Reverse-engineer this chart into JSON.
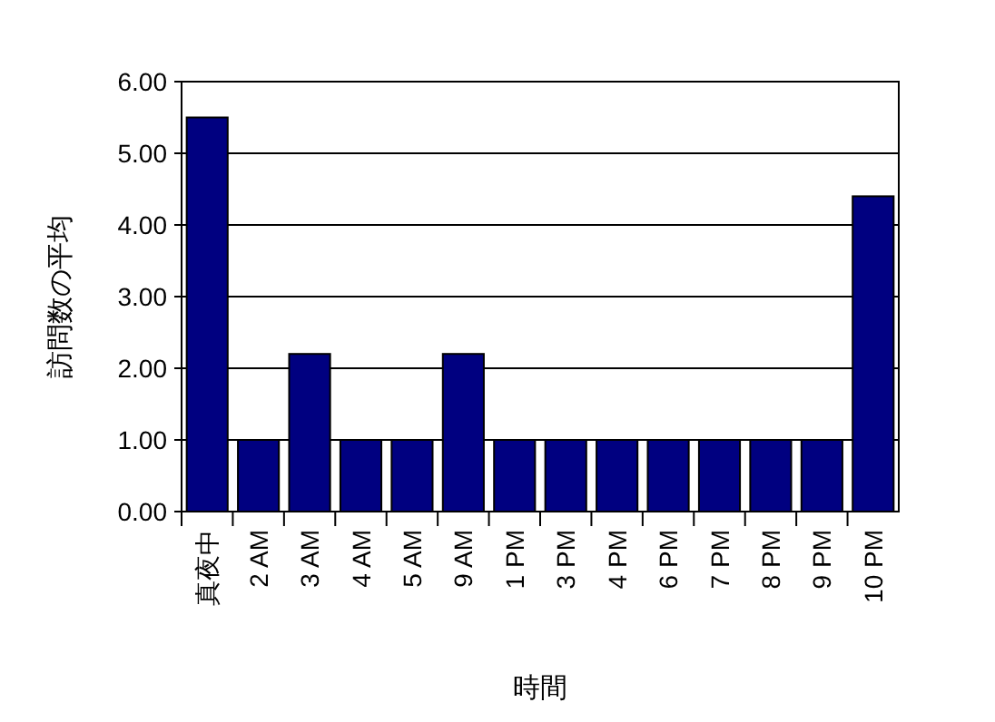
{
  "chart_data": {
    "type": "bar",
    "xlabel": "時間",
    "ylabel": "訪問数の平均",
    "categories": [
      "真夜中",
      "2 AM",
      "3 AM",
      "4 AM",
      "5 AM",
      "9 AM",
      "1 PM",
      "3 PM",
      "4 PM",
      "6 PM",
      "7 PM",
      "8 PM",
      "9 PM",
      "10 PM"
    ],
    "series": [
      {
        "color": "#000080",
        "values": [
          5.5,
          1,
          2.2,
          1,
          1,
          2.2,
          1,
          1,
          1,
          1,
          1,
          1,
          1,
          4.4
        ]
      }
    ],
    "ylim": [
      0,
      6
    ],
    "yticks": [
      {
        "value": 0,
        "label": "0.00"
      },
      {
        "value": 1,
        "label": "1.00"
      },
      {
        "value": 2,
        "label": "2.00"
      },
      {
        "value": 3,
        "label": "3.00"
      },
      {
        "value": 4,
        "label": "4.00"
      },
      {
        "value": 5,
        "label": "5.00"
      },
      {
        "value": 6,
        "label": "6.00"
      }
    ],
    "grid": "y"
  }
}
